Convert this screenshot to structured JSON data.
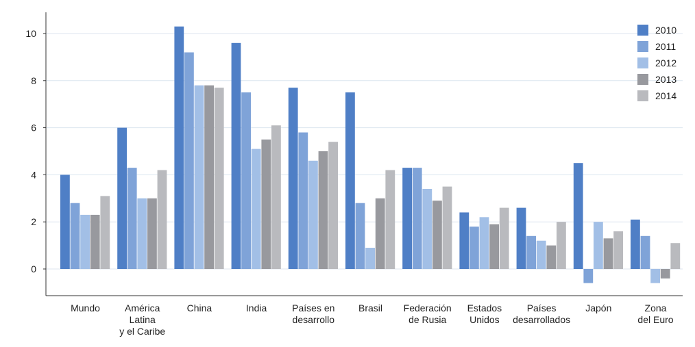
{
  "chart_data": {
    "type": "bar",
    "title": "",
    "xlabel": "",
    "ylabel": "",
    "ylim": [
      -1.2,
      11
    ],
    "yticks": [
      0,
      2,
      4,
      6,
      8,
      10
    ],
    "grid": true,
    "legend_position": "top-right",
    "categories": [
      "Mundo",
      "América Latina y el Caribe",
      "China",
      "India",
      "Países en desarrollo",
      "Brasil",
      "Federación de Rusia",
      "Estados Unidos",
      "Países desarrollados",
      "Japón",
      "Zona del Euro"
    ],
    "category_lines": [
      [
        "Mundo"
      ],
      [
        "América",
        "Latina",
        "y el Caribe"
      ],
      [
        "China"
      ],
      [
        "India"
      ],
      [
        "Países en",
        "desarrollo"
      ],
      [
        "Brasil"
      ],
      [
        "Federación",
        "de Rusia"
      ],
      [
        "Estados",
        "Unidos"
      ],
      [
        "Países",
        "desarrollados"
      ],
      [
        "Japón"
      ],
      [
        "Zona",
        "del Euro"
      ]
    ],
    "series": [
      {
        "name": "2010",
        "color": "#4f7fc6",
        "values": [
          4.0,
          6.0,
          10.3,
          9.6,
          7.7,
          7.5,
          4.3,
          2.4,
          2.6,
          4.5,
          2.1
        ]
      },
      {
        "name": "2011",
        "color": "#7fa3d8",
        "values": [
          2.8,
          4.3,
          9.2,
          7.5,
          5.8,
          2.8,
          4.3,
          1.8,
          1.4,
          -0.6,
          1.4
        ]
      },
      {
        "name": "2012",
        "color": "#a2bfe6",
        "values": [
          2.3,
          3.0,
          7.8,
          5.1,
          4.6,
          0.9,
          3.4,
          2.2,
          1.2,
          2.0,
          -0.6
        ]
      },
      {
        "name": "2013",
        "color": "#98999e",
        "values": [
          2.3,
          3.0,
          7.8,
          5.5,
          5.0,
          3.0,
          2.9,
          1.9,
          1.0,
          1.3,
          -0.4
        ]
      },
      {
        "name": "2014",
        "color": "#b9babe",
        "values": [
          3.1,
          4.2,
          7.7,
          6.1,
          5.4,
          4.2,
          3.5,
          2.6,
          2.0,
          1.6,
          1.1
        ]
      }
    ]
  }
}
